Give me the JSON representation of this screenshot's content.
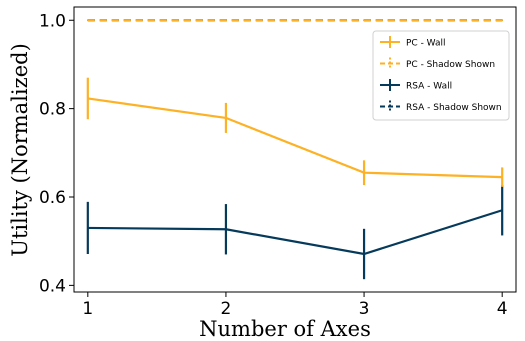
{
  "chart_data": {
    "type": "line",
    "xlabel": "Number of Axes",
    "ylabel": "Utility (Normalized)",
    "x": [
      1,
      2,
      3,
      4
    ],
    "x_ticks": [
      "1",
      "2",
      "3",
      "4"
    ],
    "y_ticks": [
      "0.4",
      "0.6",
      "0.8",
      "1.0"
    ],
    "y_tick_values": [
      0.4,
      0.6,
      0.8,
      1.0
    ],
    "xlim": [
      0.9,
      4.1
    ],
    "ylim": [
      0.385,
      1.03
    ],
    "grid": false,
    "legend_position": "top-right",
    "series": [
      {
        "name": "PC - Wall",
        "color": "#FDB124",
        "dash": "solid",
        "values": [
          0.823,
          0.779,
          0.655,
          0.645
        ],
        "errors": [
          0.047,
          0.034,
          0.028,
          0.022
        ]
      },
      {
        "name": "PC - Shadow Shown",
        "color": "#FDB124",
        "dash": "dashed",
        "values": [
          1.0,
          1.0,
          1.0,
          1.0
        ],
        "errors": [
          0,
          0,
          0,
          0
        ]
      },
      {
        "name": "RSA - Wall",
        "color": "#063A5B",
        "dash": "solid",
        "values": [
          0.53,
          0.527,
          0.471,
          0.57
        ],
        "errors": [
          0.059,
          0.057,
          0.057,
          0.057
        ]
      },
      {
        "name": "RSA - Shadow Shown",
        "color": "#063A5B",
        "dash": "dashed",
        "values": [
          1.0,
          1.0,
          1.0,
          1.0
        ],
        "errors": [
          0,
          0,
          0,
          0
        ]
      }
    ]
  }
}
